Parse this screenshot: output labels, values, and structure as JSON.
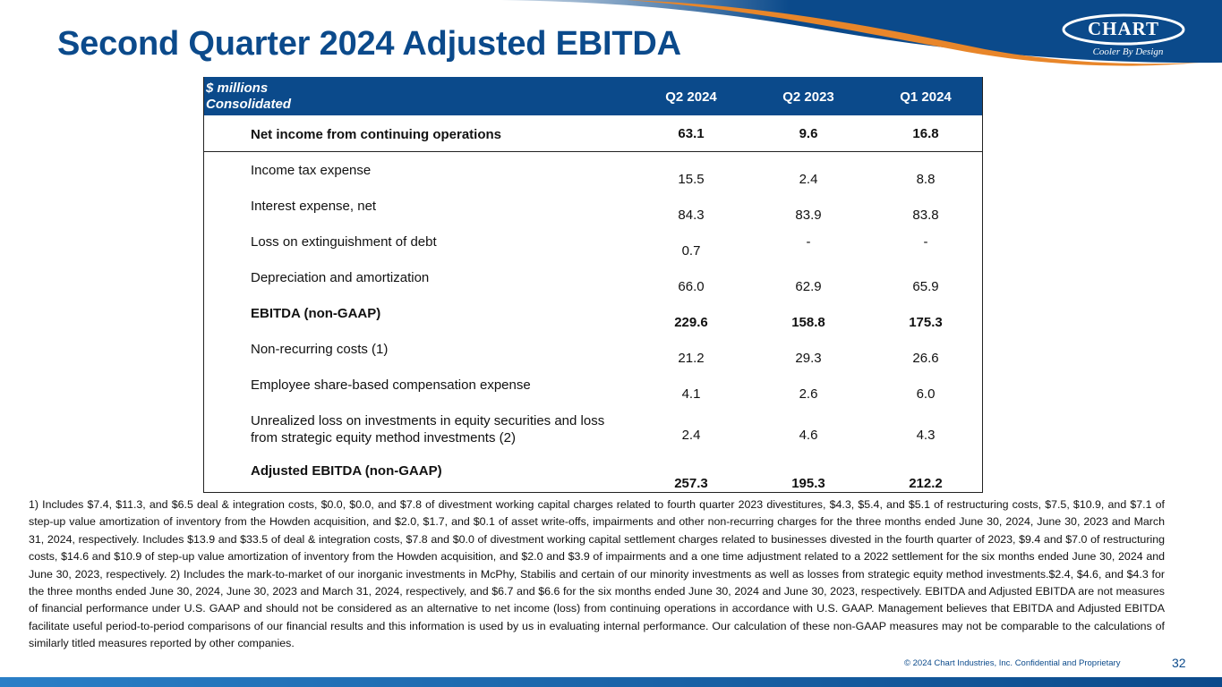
{
  "header": {
    "title": "Second Quarter 2024 Adjusted EBITDA",
    "logo": "CHART",
    "tagline": "Cooler By Design"
  },
  "table": {
    "unit": "$ millions",
    "scope": "Consolidated",
    "columns": [
      "Q2 2024",
      "Q2 2023",
      "Q1 2024"
    ],
    "rows": [
      [
        "Net income from continuing operations",
        "63.1",
        "9.6",
        "16.8"
      ],
      [
        "Income tax expense",
        "15.5",
        "2.4",
        "8.8"
      ],
      [
        "Interest expense, net",
        "84.3",
        "83.9",
        "83.8"
      ],
      [
        "Loss on extinguishment of debt",
        "0.7",
        "-",
        "-"
      ],
      [
        "Depreciation and amortization",
        "66.0",
        "62.9",
        "65.9"
      ],
      [
        "EBITDA (non-GAAP)",
        "229.6",
        "158.8",
        "175.3"
      ],
      [
        "Non-recurring costs (1)",
        "21.2",
        "29.3",
        "26.6"
      ],
      [
        "Employee share-based compensation expense",
        "4.1",
        "2.6",
        "6.0"
      ],
      [
        "Unrealized loss on investments in equity securities and loss from strategic equity method investments (2)",
        "2.4",
        "4.6",
        "4.3"
      ],
      [
        "Adjusted EBITDA (non-GAAP)",
        "257.3",
        "195.3",
        "212.2"
      ]
    ]
  },
  "footnote": "1) Includes $7.4, $11.3, and $6.5 deal & integration costs, $0.0, $0.0, and $7.8 of divestment working capital charges related to fourth quarter 2023 divestitures, $4.3, $5.4, and $5.1 of restructuring costs, $7.5, $10.9, and $7.1 of step-up value amortization of inventory from the Howden acquisition, and $2.0, $1.7, and $0.1 of asset write-offs, impairments and other non-recurring charges for the three months ended June 30, 2024, June 30, 2023 and March 31, 2024, respectively.  Includes $13.9 and $33.5 of deal & integration costs, $7.8 and $0.0 of divestment working capital settlement charges related to businesses divested in the fourth quarter of 2023, $9.4 and $7.0 of restructuring costs, $14.6 and $10.9 of step-up value amortization of inventory from the Howden acquisition, and $2.0 and $3.9 of impairments and a one time adjustment related to a 2022 settlement for the six months ended June 30, 2024 and June 30, 2023, respectively. 2) Includes the mark-to-market of our inorganic investments in McPhy, Stabilis and certain of our minority investments as well as losses from strategic equity method investments.$2.4, $4.6, and $4.3 for the three months ended June 30, 2024, June 30, 2023 and March 31, 2024, respectively, and $6.7 and $6.6 for the six months ended June 30, 2024 and June 30, 2023, respectively.  EBITDA and Adjusted EBITDA are not measures of financial performance under U.S. GAAP and should not be considered as an alternative to net income (loss) from continuing operations in accordance with U.S. GAAP.  Management believes that EBITDA and Adjusted EBITDA facilitate useful period-to-period comparisons of our financial results and this information is used by us in evaluating internal performance.  Our calculation of these non-GAAP measures may not be comparable to the calculations of similarly titled measures reported by other companies.",
  "footer": {
    "copyright": "© 2024 Chart Industries, Inc. Confidential and Proprietary",
    "page": "32"
  }
}
